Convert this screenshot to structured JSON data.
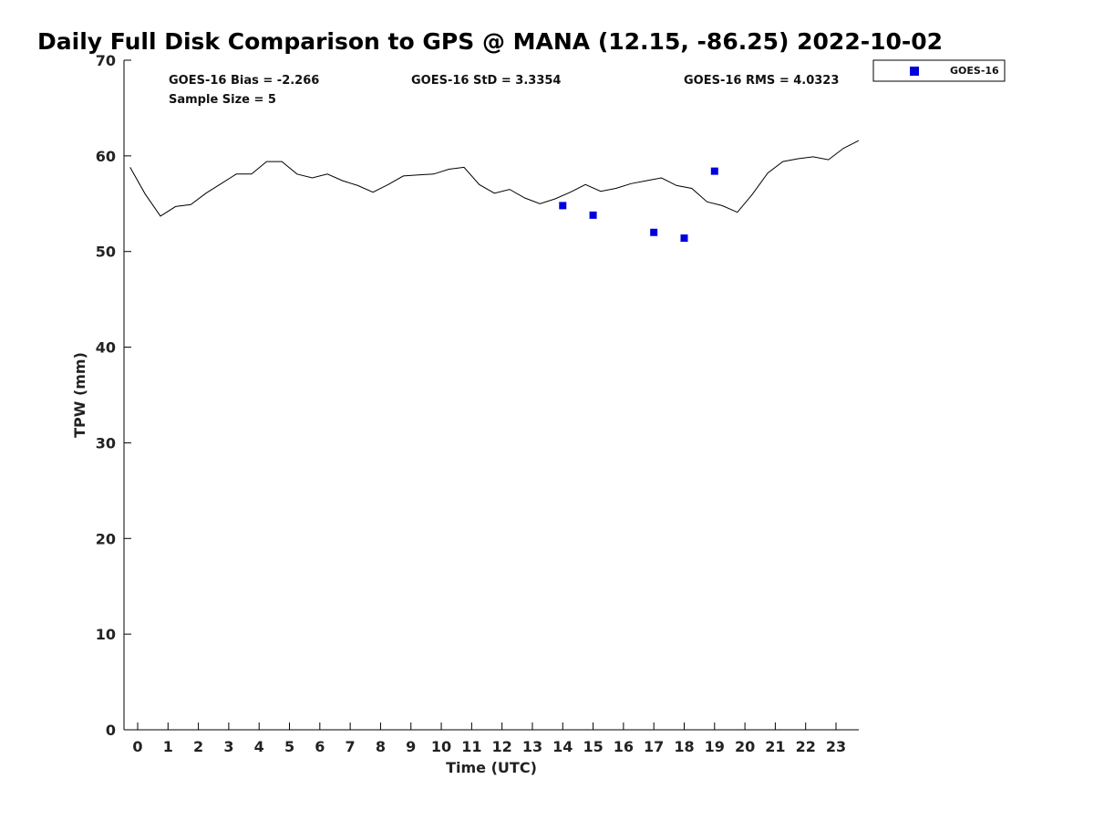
{
  "chart_data": {
    "type": "scatter",
    "title": "Daily Full Disk Comparison to GPS @ MANA (12.15, -86.25) 2022-10-02",
    "xlabel": "Time (UTC)",
    "ylabel": "TPW (mm)",
    "xlim": [
      -0.45,
      23.75
    ],
    "ylim": [
      0,
      70
    ],
    "x_ticks": [
      0,
      1,
      2,
      3,
      4,
      5,
      6,
      7,
      8,
      9,
      10,
      11,
      12,
      13,
      14,
      15,
      16,
      17,
      18,
      19,
      20,
      21,
      22,
      23
    ],
    "y_ticks": [
      0,
      10,
      20,
      30,
      40,
      50,
      60,
      70
    ],
    "legend_position": "outside-top-right",
    "stats": {
      "bias": "GOES-16 Bias = -2.266",
      "std": "GOES-16 StD = 3.3354",
      "rms": "GOES-16 RMS = 4.0323",
      "sample_size": "Sample Size = 5"
    },
    "gps_line": {
      "color": "#000000",
      "x": [
        -0.25,
        0.25,
        0.75,
        1.25,
        1.75,
        2.25,
        2.75,
        3.25,
        3.75,
        4.25,
        4.75,
        5.25,
        5.75,
        6.25,
        6.75,
        7.25,
        7.75,
        8.25,
        8.75,
        9.25,
        9.75,
        10.25,
        10.75,
        11.25,
        11.75,
        12.25,
        12.75,
        13.25,
        13.75,
        14.25,
        14.75,
        15.25,
        15.75,
        16.25,
        16.75,
        17.25,
        17.75,
        18.25,
        18.75,
        19.25,
        19.75,
        20.25,
        20.75,
        21.25,
        21.75,
        22.25,
        22.75,
        23.25,
        23.75
      ],
      "y": [
        58.8,
        56.0,
        53.7,
        54.7,
        54.9,
        56.1,
        57.1,
        58.1,
        58.1,
        59.4,
        59.4,
        58.1,
        57.7,
        58.1,
        57.4,
        56.9,
        56.2,
        57.0,
        57.9,
        58.0,
        58.1,
        58.6,
        58.8,
        57.0,
        56.1,
        56.5,
        55.6,
        55.0,
        55.5,
        56.2,
        57.0,
        56.3,
        56.6,
        57.1,
        57.4,
        57.7,
        56.9,
        56.6,
        55.2,
        54.8,
        54.1,
        56.0,
        58.2,
        59.4,
        59.7,
        59.9,
        59.6,
        60.8,
        61.6
      ]
    },
    "series": [
      {
        "name": "GOES-16",
        "color": "#0000dd",
        "marker": "square",
        "x": [
          14,
          15,
          17,
          18,
          19
        ],
        "y": [
          54.8,
          53.8,
          52.0,
          51.4,
          58.4
        ]
      }
    ]
  }
}
